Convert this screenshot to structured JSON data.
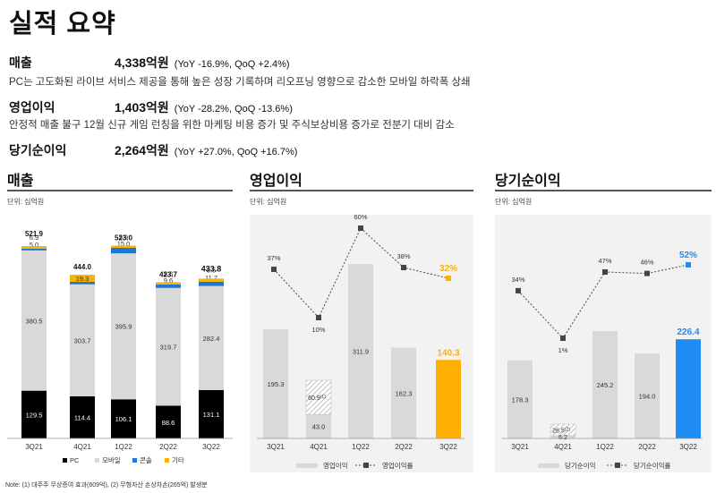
{
  "header": {
    "title": "실적 요약"
  },
  "summary": {
    "revenue": {
      "label": "매출",
      "value": "4,338억원",
      "change": "(YoY -16.9%, QoQ +2.4%)",
      "desc": "PC는 고도화된 라이브 서비스 제공을 통해 높은 성장 기록하며 리오프닝 영향으로 감소한 모바일 하락폭 상쇄"
    },
    "op": {
      "label": "영업이익",
      "value": "1,403억원",
      "change": "(YoY -28.2%, QoQ -13.6%)",
      "desc": "안정적 매출 불구 12월 신규 게임 런칭을 위한 마케팅 비용 증가 및 주식보상비용 증가로 전분기 대비 감소"
    },
    "net": {
      "label": "당기순이익",
      "value": "2,264억원",
      "change": "(YoY +27.0%, QoQ +16.7%)"
    }
  },
  "revenue_panel": {
    "title": "매출",
    "unit": "단위: 십억원"
  },
  "op_panel": {
    "title": "영업이익",
    "unit": "단위: 십억원"
  },
  "net_panel": {
    "title": "당기순이익",
    "unit": "단위: 십억원"
  },
  "footnote": "Note: (1) 대주주 무상증여 효과(609억), (2) 무형자산 손상차손(265억) 발생분",
  "colors": {
    "pc": "#000000",
    "mobile": "#d9d9d9",
    "console": "#1f77d4",
    "other": "#f5b40a",
    "op_highlight": "#ffb000",
    "net_highlight": "#1f8bf3",
    "bar_gray": "#d9d9d9"
  },
  "chart_data": [
    {
      "type": "bar",
      "stacked": true,
      "categories": [
        "3Q21",
        "4Q21",
        "1Q22",
        "2Q22",
        "3Q22"
      ],
      "series": [
        {
          "name": "PC",
          "values": [
            129.5,
            114.4,
            106.1,
            88.6,
            131.1
          ]
        },
        {
          "name": "모바일",
          "values": [
            380.5,
            303.7,
            395.9,
            319.7,
            282.4
          ]
        },
        {
          "name": "콘솔",
          "values": [
            5.0,
            6.7,
            15.0,
            9.6,
            11.7
          ]
        },
        {
          "name": "기타",
          "values": [
            6.9,
            19.3,
            5.9,
            5.8,
            8.5
          ]
        }
      ],
      "totals": [
        "521.9",
        "444.0",
        "523.0",
        "423.7",
        "433.8"
      ]
    },
    {
      "type": "bar",
      "categories": [
        "3Q21",
        "4Q21",
        "1Q22",
        "2Q22",
        "3Q22"
      ],
      "series": [
        {
          "name": "영업이익",
          "values": [
            195.3,
            43.0,
            311.9,
            162.3,
            140.3
          ]
        },
        {
          "name": "영업이익률",
          "type": "line",
          "values": [
            37,
            10,
            60,
            38,
            32
          ]
        }
      ],
      "extra": {
        "category": "4Q21",
        "value": 60.9,
        "label": "60.9",
        "note": "(1)"
      },
      "margin_labels": [
        "37%",
        "10%",
        "60%",
        "38%",
        "32%"
      ],
      "legend": [
        "영업이익",
        "영업이익률"
      ]
    },
    {
      "type": "bar",
      "categories": [
        "3Q21",
        "4Q21",
        "1Q22",
        "2Q22",
        "3Q22"
      ],
      "series": [
        {
          "name": "당기순이익",
          "values": [
            178.3,
            6.2,
            245.2,
            194.0,
            226.4
          ]
        },
        {
          "name": "당기순이익률",
          "type": "line",
          "values": [
            34,
            1,
            47,
            46,
            52
          ]
        }
      ],
      "extra": {
        "category": "4Q21",
        "value": 26.5,
        "label": "26.5",
        "note": "(2)"
      },
      "margin_labels": [
        "34%",
        "1%",
        "47%",
        "46%",
        "52%"
      ],
      "legend": [
        "당기순이익",
        "당기순이익률"
      ]
    }
  ]
}
